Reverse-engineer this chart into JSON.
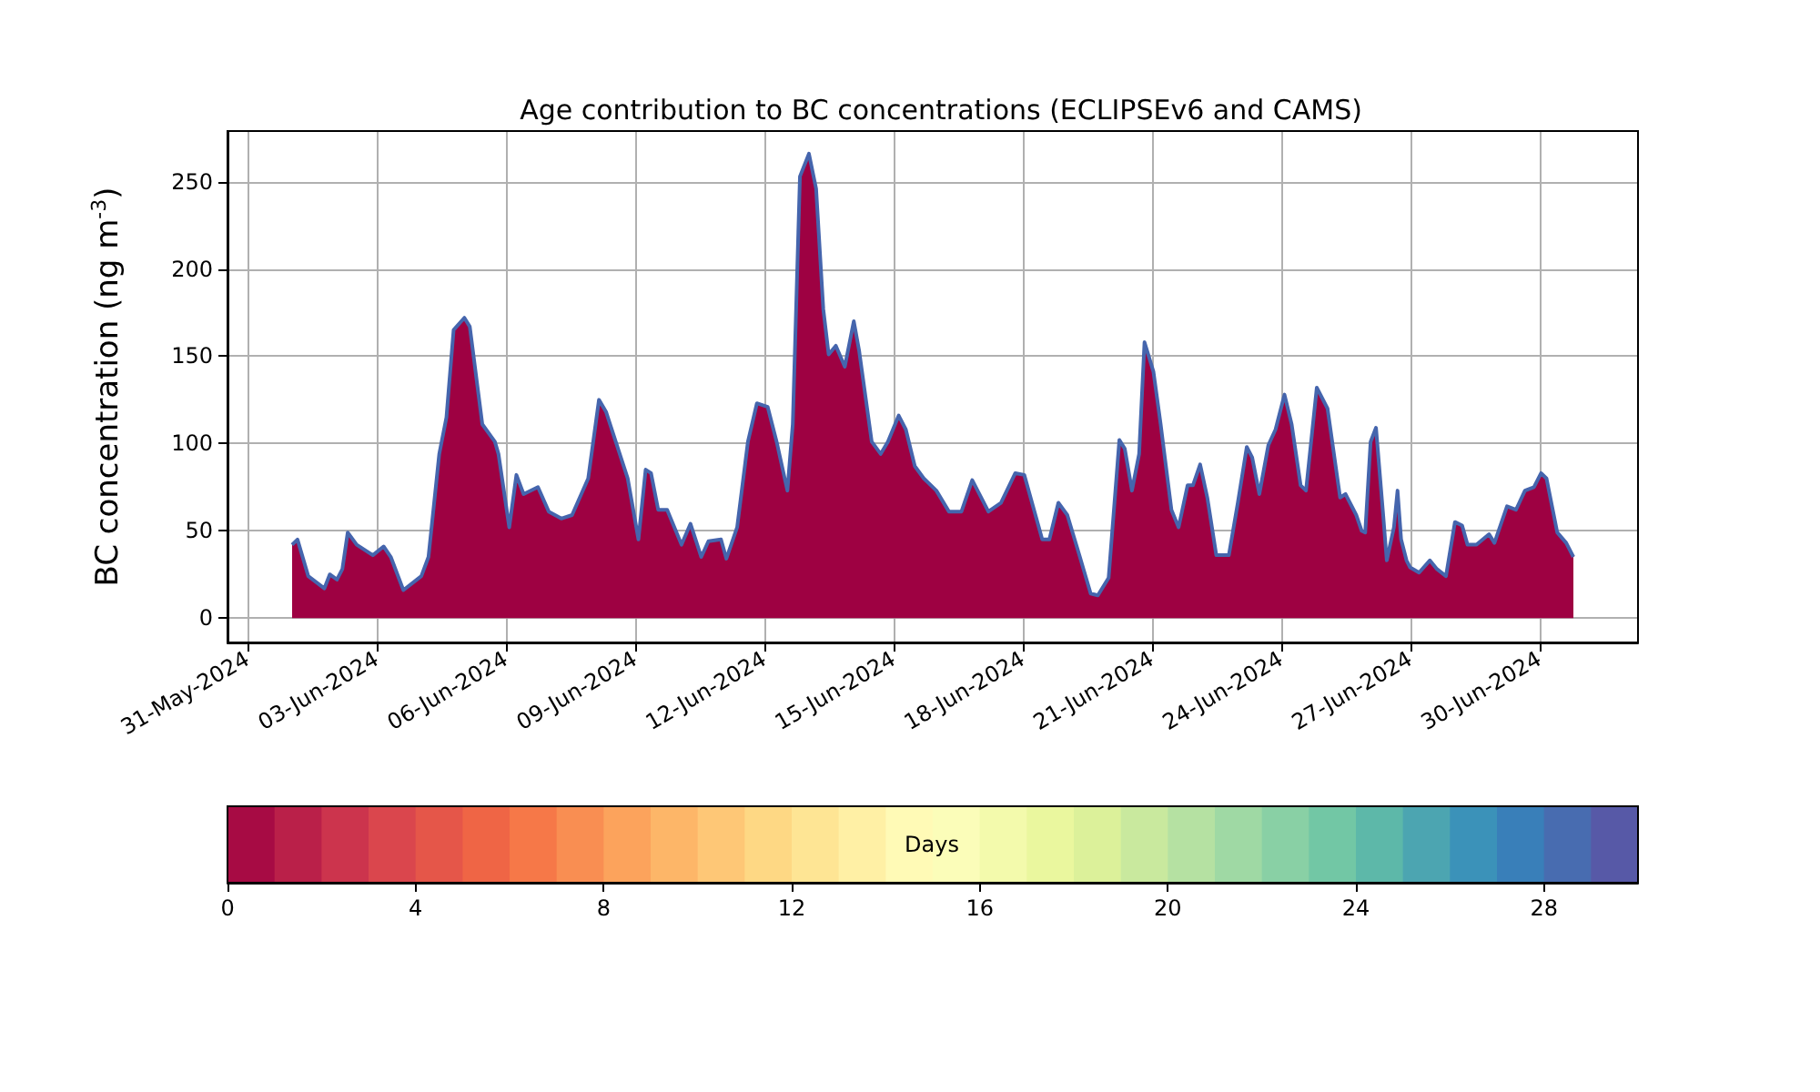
{
  "chart_data": {
    "type": "area",
    "title": "Age contribution to BC concentrations (ECLIPSEv6 and CAMS)",
    "ylabel": "BC concentration (ng m$^{-3}$)",
    "clabel": "Days",
    "x": [
      "2024-06-01T01:00",
      "2024-06-01T04:00",
      "2024-06-01T10:00",
      "2024-06-01T19:00",
      "2024-06-01T22:00",
      "2024-06-02T02:00",
      "2024-06-02T05:00",
      "2024-06-02T08:00",
      "2024-06-02T13:00",
      "2024-06-02T22:00",
      "2024-06-03T04:00",
      "2024-06-03T08:00",
      "2024-06-03T15:00",
      "2024-06-04T01:00",
      "2024-06-04T05:00",
      "2024-06-04T11:00",
      "2024-06-04T15:00",
      "2024-06-04T19:00",
      "2024-06-05T01:00",
      "2024-06-05T04:00",
      "2024-06-05T11:00",
      "2024-06-05T18:00",
      "2024-06-05T20:00",
      "2024-06-06T02:00",
      "2024-06-06T06:00",
      "2024-06-06T10:00",
      "2024-06-06T18:00",
      "2024-06-07T00:00",
      "2024-06-07T07:00",
      "2024-06-07T13:00",
      "2024-06-07T22:00",
      "2024-06-08T04:00",
      "2024-06-08T08:00",
      "2024-06-08T20:00",
      "2024-06-09T02:00",
      "2024-06-09T06:00",
      "2024-06-09T09:00",
      "2024-06-09T13:00",
      "2024-06-09T18:00",
      "2024-06-10T02:00",
      "2024-06-10T07:00",
      "2024-06-10T13:00",
      "2024-06-10T17:00",
      "2024-06-11T00:00",
      "2024-06-11T03:00",
      "2024-06-11T09:00",
      "2024-06-11T15:00",
      "2024-06-11T20:00",
      "2024-06-12T02:00",
      "2024-06-12T07:00",
      "2024-06-12T13:00",
      "2024-06-12T16:00",
      "2024-06-12T20:00",
      "2024-06-13T01:00",
      "2024-06-13T05:00",
      "2024-06-13T09:00",
      "2024-06-13T12:00",
      "2024-06-13T16:00",
      "2024-06-13T21:00",
      "2024-06-14T02:00",
      "2024-06-14T05:00",
      "2024-06-14T12:00",
      "2024-06-14T17:00",
      "2024-06-14T21:00",
      "2024-06-15T03:00",
      "2024-06-15T07:00",
      "2024-06-15T12:00",
      "2024-06-15T17:00",
      "2024-06-16T00:00",
      "2024-06-16T07:00",
      "2024-06-16T14:00",
      "2024-06-16T20:00",
      "2024-06-17T05:00",
      "2024-06-17T12:00",
      "2024-06-17T20:00",
      "2024-06-18T01:00",
      "2024-06-18T11:00",
      "2024-06-18T15:00",
      "2024-06-18T20:00",
      "2024-06-19T01:00",
      "2024-06-19T08:00",
      "2024-06-19T14:00",
      "2024-06-19T18:00",
      "2024-06-20T00:00",
      "2024-06-20T06:00",
      "2024-06-20T09:00",
      "2024-06-20T13:00",
      "2024-06-20T17:00",
      "2024-06-20T20:00",
      "2024-06-21T01:00",
      "2024-06-21T05:00",
      "2024-06-21T11:00",
      "2024-06-21T15:00",
      "2024-06-21T20:00",
      "2024-06-21T23:00",
      "2024-06-22T03:00",
      "2024-06-22T07:00",
      "2024-06-22T12:00",
      "2024-06-22T19:00",
      "2024-06-23T00:00",
      "2024-06-23T05:00",
      "2024-06-23T08:00",
      "2024-06-23T12:00",
      "2024-06-23T17:00",
      "2024-06-23T21:00",
      "2024-06-24T02:00",
      "2024-06-24T06:00",
      "2024-06-24T11:00",
      "2024-06-24T14:00",
      "2024-06-24T20:00",
      "2024-06-25T02:00",
      "2024-06-25T09:00",
      "2024-06-25T12:00",
      "2024-06-25T18:00",
      "2024-06-25T21:00",
      "2024-06-25T23:00",
      "2024-06-26T02:00",
      "2024-06-26T05:00",
      "2024-06-26T09:00",
      "2024-06-26T11:00",
      "2024-06-26T15:00",
      "2024-06-26T17:00",
      "2024-06-26T19:00",
      "2024-06-26T22:00",
      "2024-06-27T00:00",
      "2024-06-27T05:00",
      "2024-06-27T11:00",
      "2024-06-27T15:00",
      "2024-06-27T20:00",
      "2024-06-28T01:00",
      "2024-06-28T05:00",
      "2024-06-28T08:00",
      "2024-06-28T13:00",
      "2024-06-28T20:00",
      "2024-06-28T23:00",
      "2024-06-29T06:00",
      "2024-06-29T11:00",
      "2024-06-29T16:00",
      "2024-06-29T21:00",
      "2024-06-30T01:00",
      "2024-06-30T04:00",
      "2024-06-30T10:00",
      "2024-06-30T15:00",
      "2024-06-30T19:00"
    ],
    "series": [
      {
        "color": "#9e0142",
        "values": [
          42,
          45,
          24,
          17,
          25,
          22,
          28,
          49,
          42,
          36,
          41,
          35,
          16,
          24,
          35,
          94,
          115,
          165,
          172,
          167,
          111,
          101,
          94,
          52,
          82,
          71,
          75,
          61,
          57,
          59,
          80,
          125,
          118,
          80,
          45,
          85,
          83,
          62,
          62,
          42,
          54,
          35,
          44,
          45,
          34,
          52,
          101,
          123,
          121,
          101,
          73,
          111,
          253,
          266,
          246,
          177,
          151,
          156,
          144,
          170,
          153,
          101,
          94,
          101,
          116,
          108,
          87,
          80,
          73,
          61,
          61,
          79,
          61,
          66,
          83,
          82,
          45,
          45,
          66,
          59,
          35,
          14,
          13,
          23,
          102,
          97,
          73,
          94,
          158,
          141,
          111,
          62,
          52,
          76,
          76,
          88,
          69,
          36,
          36,
          66,
          98,
          92,
          71,
          99,
          108,
          128,
          111,
          76,
          73,
          132,
          120,
          69,
          71,
          59,
          50,
          49,
          101,
          109,
          59,
          33,
          52,
          73,
          45,
          33,
          29,
          26,
          33,
          28,
          24,
          55,
          53,
          42,
          42,
          48,
          43,
          64,
          62,
          73,
          75,
          83,
          80,
          49,
          43,
          35
        ]
      },
      {
        "type": "line",
        "color": "#4565ad",
        "values": [
          42,
          45,
          24,
          17,
          25,
          22,
          28,
          49,
          42,
          36,
          41,
          35,
          16,
          24,
          35,
          94,
          115,
          165,
          172,
          167,
          111,
          101,
          94,
          52,
          82,
          71,
          75,
          61,
          57,
          59,
          80,
          125,
          118,
          80,
          45,
          85,
          83,
          62,
          62,
          42,
          54,
          35,
          44,
          45,
          34,
          52,
          101,
          123,
          121,
          101,
          73,
          111,
          253,
          266,
          246,
          177,
          151,
          156,
          144,
          170,
          153,
          101,
          94,
          101,
          116,
          108,
          87,
          80,
          73,
          61,
          61,
          79,
          61,
          66,
          83,
          82,
          45,
          45,
          66,
          59,
          35,
          14,
          13,
          23,
          102,
          97,
          73,
          94,
          158,
          141,
          111,
          62,
          52,
          76,
          76,
          88,
          69,
          36,
          36,
          66,
          98,
          92,
          71,
          99,
          108,
          128,
          111,
          76,
          73,
          132,
          120,
          69,
          71,
          59,
          50,
          49,
          101,
          109,
          59,
          33,
          52,
          73,
          45,
          33,
          29,
          26,
          33,
          28,
          24,
          55,
          53,
          42,
          42,
          48,
          43,
          64,
          62,
          73,
          75,
          83,
          80,
          49,
          43,
          35
        ]
      }
    ],
    "xlim": [
      "2024-05-30T13:00",
      "2024-07-02T07:00"
    ],
    "xticks": [
      {
        "value": "2024-05-31",
        "label": "31-May-2024"
      },
      {
        "value": "2024-06-03",
        "label": "03-Jun-2024"
      },
      {
        "value": "2024-06-06",
        "label": "06-Jun-2024"
      },
      {
        "value": "2024-06-09",
        "label": "09-Jun-2024"
      },
      {
        "value": "2024-06-12",
        "label": "12-Jun-2024"
      },
      {
        "value": "2024-06-15",
        "label": "15-Jun-2024"
      },
      {
        "value": "2024-06-18",
        "label": "18-Jun-2024"
      },
      {
        "value": "2024-06-21",
        "label": "21-Jun-2024"
      },
      {
        "value": "2024-06-24",
        "label": "24-Jun-2024"
      },
      {
        "value": "2024-06-27",
        "label": "27-Jun-2024"
      },
      {
        "value": "2024-06-30",
        "label": "30-Jun-2024"
      }
    ],
    "ylim": [
      -14,
      279
    ],
    "yticks": [
      0,
      50,
      100,
      150,
      200,
      250
    ],
    "clim": [
      0,
      30
    ],
    "cticks": [
      0,
      4,
      8,
      12,
      16,
      20,
      24,
      28
    ],
    "grid": true
  }
}
